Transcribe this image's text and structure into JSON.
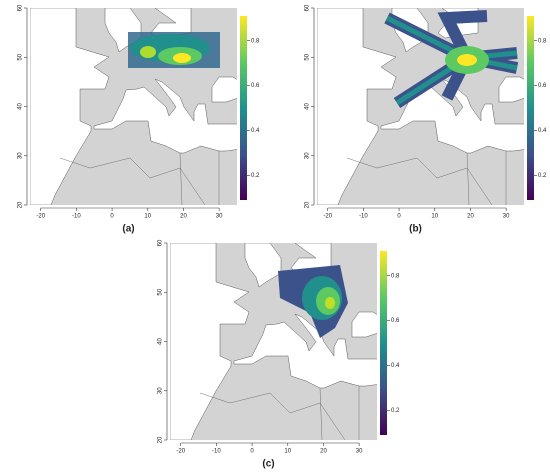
{
  "panels": [
    {
      "label": "(a)",
      "xlim": [
        -23,
        35
      ],
      "ylim": [
        20,
        60
      ],
      "xticks": [
        -20,
        -10,
        0,
        10,
        20,
        30
      ],
      "yticks": [
        20,
        30,
        40,
        50,
        60
      ],
      "colorbar": {
        "lim": [
          0.09,
          0.91
        ],
        "ticks": [
          0.2,
          0.4,
          0.6,
          0.8
        ]
      }
    },
    {
      "label": "(b)",
      "xlim": [
        -23,
        35
      ],
      "ylim": [
        20,
        60
      ],
      "xticks": [
        -20,
        -10,
        0,
        10,
        20,
        30
      ],
      "yticks": [
        20,
        30,
        40,
        50,
        60
      ],
      "colorbar": {
        "lim": [
          0.09,
          0.91
        ],
        "ticks": [
          0.2,
          0.4,
          0.6,
          0.8
        ]
      }
    },
    {
      "label": "(c)",
      "xlim": [
        -23,
        35
      ],
      "ylim": [
        20,
        60
      ],
      "xticks": [
        -20,
        -10,
        0,
        10,
        20,
        30
      ],
      "yticks": [
        20,
        30,
        40,
        50,
        60
      ],
      "colorbar": {
        "lim": [
          0.09,
          0.91
        ],
        "ticks": [
          0.2,
          0.4,
          0.6,
          0.8
        ]
      }
    }
  ]
}
